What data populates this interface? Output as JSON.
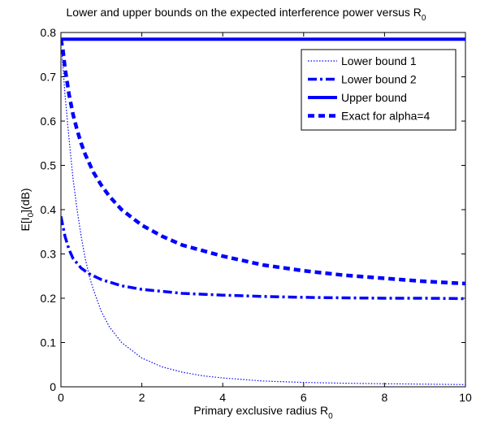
{
  "chart_data": {
    "type": "line",
    "title": "Lower and upper bounds on the expected interference power versus R",
    "title_subscript": "0",
    "xlabel": "Primary exclusive radius R",
    "xlabel_subscript": "0",
    "ylabel_prefix": "E[I",
    "ylabel_subscript": "0",
    "ylabel_suffix": "](dB)",
    "xlim": [
      0,
      10
    ],
    "ylim": [
      0,
      0.8
    ],
    "x_ticks": [
      "0",
      "2",
      "4",
      "6",
      "8",
      "10"
    ],
    "y_ticks": [
      "0",
      "0.1",
      "0.2",
      "0.3",
      "0.4",
      "0.5",
      "0.6",
      "0.7",
      "0.8"
    ],
    "grid": false,
    "legend_position": "top-right",
    "line_color": "#0000ff",
    "series": [
      {
        "name": "Lower bound 1",
        "style": "dotted",
        "x": [
          0.02,
          0.1,
          0.2,
          0.3,
          0.4,
          0.5,
          0.6,
          0.7,
          0.8,
          1.0,
          1.2,
          1.5,
          2.0,
          2.5,
          3.0,
          3.5,
          4.0,
          5.0,
          6.0,
          7.0,
          8.0,
          9.0,
          10.0
        ],
        "y": [
          0.76,
          0.66,
          0.56,
          0.47,
          0.4,
          0.34,
          0.29,
          0.25,
          0.22,
          0.17,
          0.135,
          0.1,
          0.065,
          0.045,
          0.033,
          0.025,
          0.02,
          0.013,
          0.01,
          0.008,
          0.007,
          0.006,
          0.005
        ]
      },
      {
        "name": "Lower bound 2",
        "style": "dashdot",
        "x": [
          0.0,
          0.1,
          0.2,
          0.3,
          0.5,
          0.7,
          1.0,
          1.5,
          2.0,
          3.0,
          4.0,
          5.0,
          6.0,
          7.0,
          8.0,
          9.0,
          10.0
        ],
        "y": [
          0.385,
          0.34,
          0.31,
          0.29,
          0.268,
          0.255,
          0.242,
          0.228,
          0.22,
          0.211,
          0.207,
          0.204,
          0.202,
          0.201,
          0.2,
          0.2,
          0.199
        ]
      },
      {
        "name": "Upper bound",
        "style": "solid",
        "x": [
          0.0,
          10.0
        ],
        "y": [
          0.785,
          0.785
        ]
      },
      {
        "name": "Exact for alpha=4",
        "style": "dashed",
        "x": [
          0.0,
          0.05,
          0.1,
          0.2,
          0.3,
          0.4,
          0.5,
          0.6,
          0.8,
          1.0,
          1.2,
          1.5,
          2.0,
          2.5,
          3.0,
          4.0,
          5.0,
          6.0,
          7.0,
          8.0,
          9.0,
          10.0
        ],
        "y": [
          0.785,
          0.76,
          0.72,
          0.66,
          0.615,
          0.58,
          0.55,
          0.525,
          0.485,
          0.455,
          0.43,
          0.4,
          0.365,
          0.34,
          0.32,
          0.295,
          0.275,
          0.262,
          0.252,
          0.245,
          0.238,
          0.233
        ]
      }
    ]
  }
}
